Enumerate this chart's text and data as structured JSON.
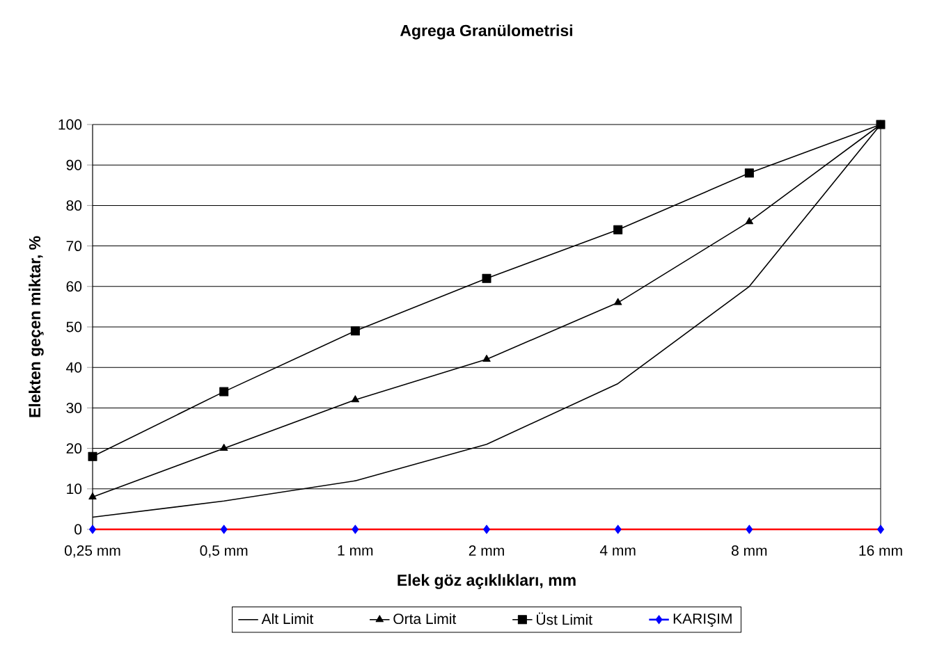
{
  "chart_data": {
    "type": "line",
    "title": "Agrega Granülometrisi",
    "xlabel": "Elek göz açıklıkları, mm",
    "ylabel": "Elekten geçen miktar, %",
    "categories": [
      "0,25 mm",
      "0,5 mm",
      "1 mm",
      "2 mm",
      "4 mm",
      "8 mm",
      "16 mm"
    ],
    "series": [
      {
        "name": "Alt Limit",
        "color": "#000000",
        "marker": "none",
        "values": [
          3,
          7,
          12,
          21,
          36,
          60,
          100
        ]
      },
      {
        "name": "Orta Limit",
        "color": "#000000",
        "marker": "triangle",
        "values": [
          8,
          20,
          32,
          42,
          56,
          76,
          100
        ]
      },
      {
        "name": "Üst Limit",
        "color": "#000000",
        "marker": "square",
        "values": [
          18,
          34,
          49,
          62,
          74,
          88,
          100
        ]
      },
      {
        "name": "KARIŞIM",
        "color": "#ff0000",
        "marker": "diamond",
        "colors": [
          "#0000ff",
          "#0000ff",
          "#0000ff",
          "#0000ff",
          "#0000ff",
          "#0000ff",
          "#0000ff"
        ],
        "values": [
          0,
          0,
          0,
          0,
          0,
          0,
          0
        ]
      }
    ],
    "ylim": [
      0,
      100
    ],
    "yticks": [
      0,
      10,
      20,
      30,
      40,
      50,
      60,
      70,
      80,
      90,
      100
    ],
    "grid": "y",
    "legend": "bottom",
    "line_style": "solid"
  }
}
